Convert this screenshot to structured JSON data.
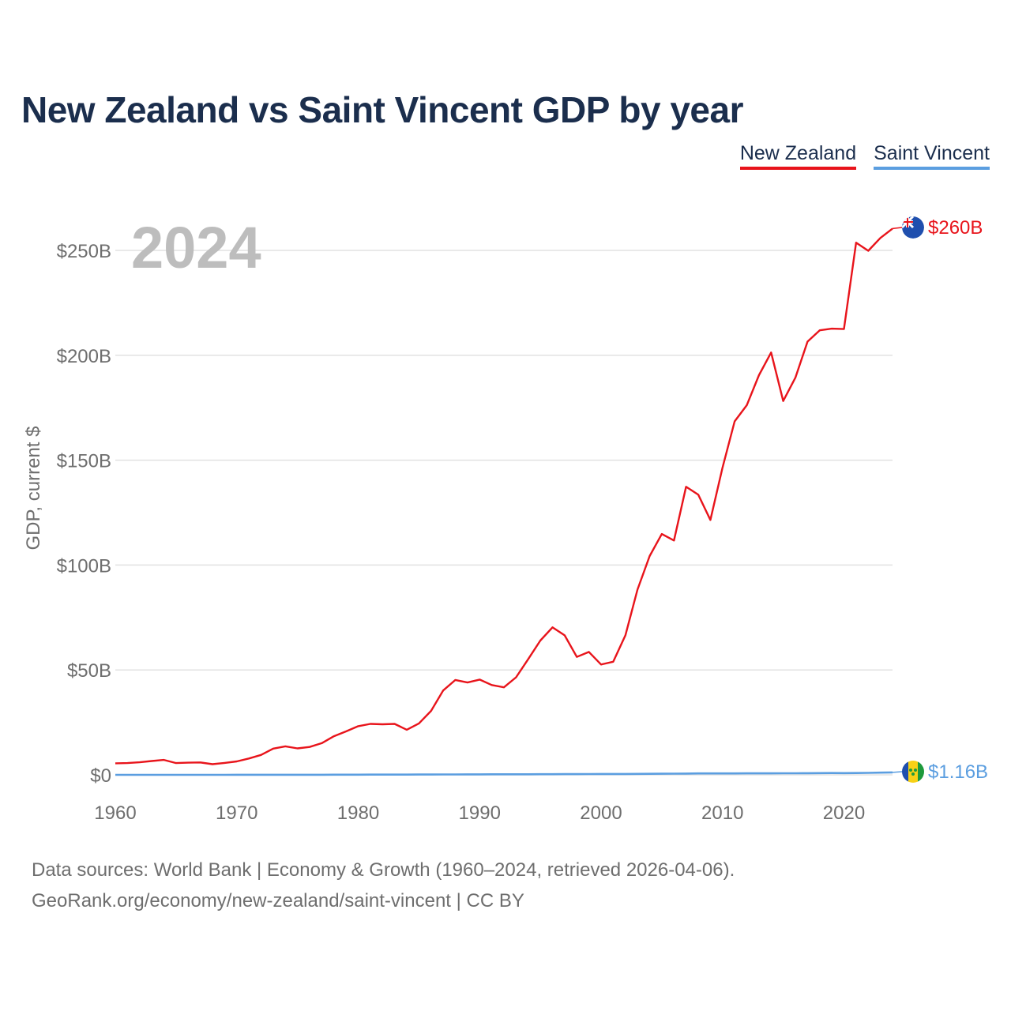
{
  "title": "New Zealand vs Saint Vincent GDP by year",
  "legend": [
    {
      "label": "New Zealand",
      "color": "#e8141b"
    },
    {
      "label": "Saint Vincent",
      "color": "#5b9ee0"
    }
  ],
  "source_lines": [
    "Data sources: World Bank | Economy & Growth (1960–2024, retrieved 2026-04-06).",
    "GeoRank.org/economy/new-zealand/saint-vincent | CC BY"
  ],
  "chart_data": {
    "type": "line",
    "title": "New Zealand vs Saint Vincent GDP by year",
    "ylabel": "GDP, current $",
    "xlabel": "",
    "year_watermark": "2024",
    "xlim": [
      1960,
      2024
    ],
    "ylim": [
      0,
      260
    ],
    "unit": "billions of current US$",
    "x_ticks": [
      1960,
      1970,
      1980,
      1990,
      2000,
      2010,
      2020
    ],
    "x_tick_labels": [
      "1960",
      "1970",
      "1980",
      "1990",
      "2000",
      "2010",
      "2020"
    ],
    "y_ticks": [
      0,
      50,
      100,
      150,
      200,
      250
    ],
    "y_tick_labels": [
      "$0",
      "$50B",
      "$100B",
      "$150B",
      "$200B",
      "$250B"
    ],
    "grid": true,
    "legend_position": "top-right",
    "x": [
      1960,
      1961,
      1962,
      1963,
      1964,
      1965,
      1966,
      1967,
      1968,
      1969,
      1970,
      1971,
      1972,
      1973,
      1974,
      1975,
      1976,
      1977,
      1978,
      1979,
      1980,
      1981,
      1982,
      1983,
      1984,
      1985,
      1986,
      1987,
      1988,
      1989,
      1990,
      1991,
      1992,
      1993,
      1994,
      1995,
      1996,
      1997,
      1998,
      1999,
      2000,
      2001,
      2002,
      2003,
      2004,
      2005,
      2006,
      2007,
      2008,
      2009,
      2010,
      2011,
      2012,
      2013,
      2014,
      2015,
      2016,
      2017,
      2018,
      2019,
      2020,
      2021,
      2022,
      2023,
      2024
    ],
    "series": [
      {
        "name": "New Zealand",
        "color": "#e8141b",
        "end_label": "$260B",
        "flag": "new-zealand-flag-icon",
        "values": [
          5.5,
          5.6,
          6.0,
          6.6,
          7.1,
          5.6,
          5.8,
          5.9,
          5.1,
          5.7,
          6.4,
          7.8,
          9.5,
          12.5,
          13.6,
          12.6,
          13.3,
          15.1,
          18.4,
          20.7,
          23.2,
          24.3,
          24.1,
          24.3,
          21.5,
          24.5,
          30.5,
          40.2,
          45.2,
          44.0,
          45.4,
          42.8,
          41.7,
          46.5,
          55.2,
          64.0,
          70.3,
          66.5,
          56.2,
          58.6,
          52.6,
          53.9,
          66.5,
          88.3,
          104.3,
          114.8,
          111.7,
          137.3,
          133.6,
          121.5,
          146.5,
          168.5,
          176.2,
          190.5,
          201.3,
          178.2,
          189.3,
          206.5,
          211.9,
          212.7,
          212.5,
          253.7,
          249.8,
          255.9,
          260.4
        ]
      },
      {
        "name": "Saint Vincent",
        "color": "#5b9ee0",
        "end_label": "$1.16B",
        "flag": "saint-vincent-flag-icon",
        "values": [
          0.01,
          0.01,
          0.01,
          0.01,
          0.01,
          0.01,
          0.01,
          0.01,
          0.01,
          0.01,
          0.02,
          0.02,
          0.02,
          0.03,
          0.03,
          0.03,
          0.04,
          0.05,
          0.06,
          0.07,
          0.08,
          0.1,
          0.11,
          0.12,
          0.13,
          0.14,
          0.16,
          0.18,
          0.2,
          0.21,
          0.23,
          0.25,
          0.27,
          0.27,
          0.28,
          0.3,
          0.31,
          0.33,
          0.35,
          0.37,
          0.4,
          0.42,
          0.43,
          0.45,
          0.48,
          0.51,
          0.56,
          0.62,
          0.66,
          0.66,
          0.67,
          0.68,
          0.7,
          0.72,
          0.73,
          0.75,
          0.77,
          0.79,
          0.82,
          0.85,
          0.82,
          0.86,
          0.96,
          1.07,
          1.16
        ]
      }
    ]
  }
}
